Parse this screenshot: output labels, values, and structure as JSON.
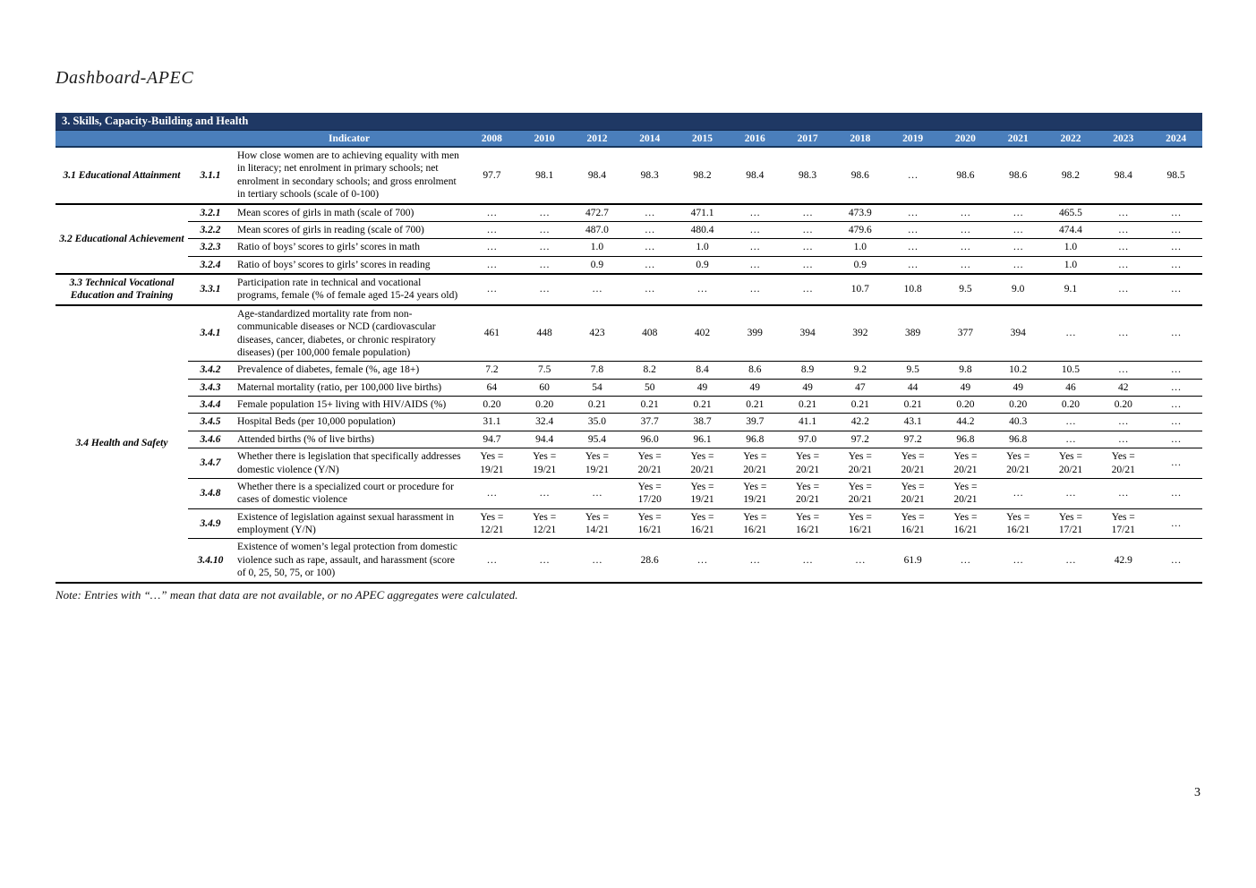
{
  "page": {
    "title": "Dashboard-APEC",
    "note": "Note: Entries with “…” mean that data are not available, or no APEC aggregates were calculated.",
    "page_number": "3"
  },
  "table": {
    "section_title": "3. Skills, Capacity-Building and Health",
    "indicator_header": "Indicator",
    "colors": {
      "header_bar_bg": "#1F3864",
      "year_row_bg": "#4A7EBB"
    },
    "years": [
      "2008",
      "2010",
      "2012",
      "2014",
      "2015",
      "2016",
      "2017",
      "2018",
      "2019",
      "2020",
      "2021",
      "2022",
      "2023",
      "2024"
    ],
    "groups": [
      {
        "category": "3.1 Educational Attainment",
        "rows": [
          {
            "code": "3.1.1",
            "indicator": "How close women are to achieving equality with men in literacy; net enrolment in primary schools; net enrolment in secondary schools; and gross enrolment in tertiary schools (scale of 0-100)",
            "values": [
              "97.7",
              "98.1",
              "98.4",
              "98.3",
              "98.2",
              "98.4",
              "98.3",
              "98.6",
              "…",
              "98.6",
              "98.6",
              "98.2",
              "98.4",
              "98.5"
            ]
          }
        ]
      },
      {
        "category": "3.2 Educational Achievement",
        "rows": [
          {
            "code": "3.2.1",
            "indicator": "Mean scores of girls in math (scale of 700)",
            "values": [
              "…",
              "…",
              "472.7",
              "…",
              "471.1",
              "…",
              "…",
              "473.9",
              "…",
              "…",
              "…",
              "465.5",
              "…",
              "…"
            ]
          },
          {
            "code": "3.2.2",
            "indicator": "Mean scores of girls in reading (scale of 700)",
            "values": [
              "…",
              "…",
              "487.0",
              "…",
              "480.4",
              "…",
              "…",
              "479.6",
              "…",
              "…",
              "…",
              "474.4",
              "…",
              "…"
            ]
          },
          {
            "code": "3.2.3",
            "indicator": "Ratio of boys’ scores to girls’ scores in math",
            "values": [
              "…",
              "…",
              "1.0",
              "…",
              "1.0",
              "…",
              "…",
              "1.0",
              "…",
              "…",
              "…",
              "1.0",
              "…",
              "…"
            ]
          },
          {
            "code": "3.2.4",
            "indicator": "Ratio of boys’ scores to girls’ scores in reading",
            "values": [
              "…",
              "…",
              "0.9",
              "…",
              "0.9",
              "…",
              "…",
              "0.9",
              "…",
              "…",
              "…",
              "1.0",
              "…",
              "…"
            ]
          }
        ]
      },
      {
        "category": "3.3 Technical Vocational Education and Training",
        "rows": [
          {
            "code": "3.3.1",
            "indicator": "Participation rate in technical and vocational programs, female (% of female aged 15-24 years old)",
            "values": [
              "…",
              "…",
              "…",
              "…",
              "…",
              "…",
              "…",
              "10.7",
              "10.8",
              "9.5",
              "9.0",
              "9.1",
              "…",
              "…"
            ]
          }
        ]
      },
      {
        "category": "3.4 Health and Safety",
        "rows": [
          {
            "code": "3.4.1",
            "indicator": "Age-standardized mortality rate from non-communicable diseases or NCD (cardiovascular diseases, cancer, diabetes, or chronic respiratory diseases) (per 100,000 female population)",
            "values": [
              "461",
              "448",
              "423",
              "408",
              "402",
              "399",
              "394",
              "392",
              "389",
              "377",
              "394",
              "…",
              "…",
              "…"
            ]
          },
          {
            "code": "3.4.2",
            "indicator": "Prevalence of diabetes, female (%, age 18+)",
            "values": [
              "7.2",
              "7.5",
              "7.8",
              "8.2",
              "8.4",
              "8.6",
              "8.9",
              "9.2",
              "9.5",
              "9.8",
              "10.2",
              "10.5",
              "…",
              "…"
            ]
          },
          {
            "code": "3.4.3",
            "indicator": "Maternal mortality (ratio, per 100,000 live births)",
            "values": [
              "64",
              "60",
              "54",
              "50",
              "49",
              "49",
              "49",
              "47",
              "44",
              "49",
              "49",
              "46",
              "42",
              "…"
            ]
          },
          {
            "code": "3.4.4",
            "indicator": "Female population 15+ living with HIV/AIDS (%)",
            "values": [
              "0.20",
              "0.20",
              "0.21",
              "0.21",
              "0.21",
              "0.21",
              "0.21",
              "0.21",
              "0.21",
              "0.20",
              "0.20",
              "0.20",
              "0.20",
              "…"
            ]
          },
          {
            "code": "3.4.5",
            "indicator": "Hospital Beds (per 10,000 population)",
            "values": [
              "31.1",
              "32.4",
              "35.0",
              "37.7",
              "38.7",
              "39.7",
              "41.1",
              "42.2",
              "43.1",
              "44.2",
              "40.3",
              "…",
              "…",
              "…"
            ]
          },
          {
            "code": "3.4.6",
            "indicator": "Attended births (% of live births)",
            "values": [
              "94.7",
              "94.4",
              "95.4",
              "96.0",
              "96.1",
              "96.8",
              "97.0",
              "97.2",
              "97.2",
              "96.8",
              "96.8",
              "…",
              "…",
              "…"
            ]
          },
          {
            "code": "3.4.7",
            "indicator": "Whether there is legislation that specifically addresses domestic violence (Y/N)",
            "values": [
              "Yes =\n19/21",
              "Yes =\n19/21",
              "Yes =\n19/21",
              "Yes =\n20/21",
              "Yes =\n20/21",
              "Yes =\n20/21",
              "Yes =\n20/21",
              "Yes =\n20/21",
              "Yes =\n20/21",
              "Yes =\n20/21",
              "Yes =\n20/21",
              "Yes =\n20/21",
              "Yes =\n20/21",
              "…"
            ]
          },
          {
            "code": "3.4.8",
            "indicator": "Whether there is a specialized court or procedure for cases of domestic violence",
            "values": [
              "…",
              "…",
              "…",
              "Yes =\n17/20",
              "Yes =\n19/21",
              "Yes =\n19/21",
              "Yes =\n20/21",
              "Yes =\n20/21",
              "Yes =\n20/21",
              "Yes =\n20/21",
              "…",
              "…",
              "…",
              "…"
            ]
          },
          {
            "code": "3.4.9",
            "indicator": "Existence of legislation against sexual harassment in employment (Y/N)",
            "values": [
              "Yes =\n12/21",
              "Yes =\n12/21",
              "Yes =\n14/21",
              "Yes =\n16/21",
              "Yes =\n16/21",
              "Yes =\n16/21",
              "Yes =\n16/21",
              "Yes =\n16/21",
              "Yes =\n16/21",
              "Yes =\n16/21",
              "Yes =\n16/21",
              "Yes =\n17/21",
              "Yes =\n17/21",
              "…"
            ]
          },
          {
            "code": "3.4.10",
            "indicator": "Existence of women’s legal protection from domestic violence such as rape, assault, and harassment (score of 0, 25, 50, 75, or 100)",
            "values": [
              "…",
              "…",
              "…",
              "28.6",
              "…",
              "…",
              "…",
              "…",
              "61.9",
              "…",
              "…",
              "…",
              "42.9",
              "…"
            ]
          }
        ]
      }
    ]
  }
}
